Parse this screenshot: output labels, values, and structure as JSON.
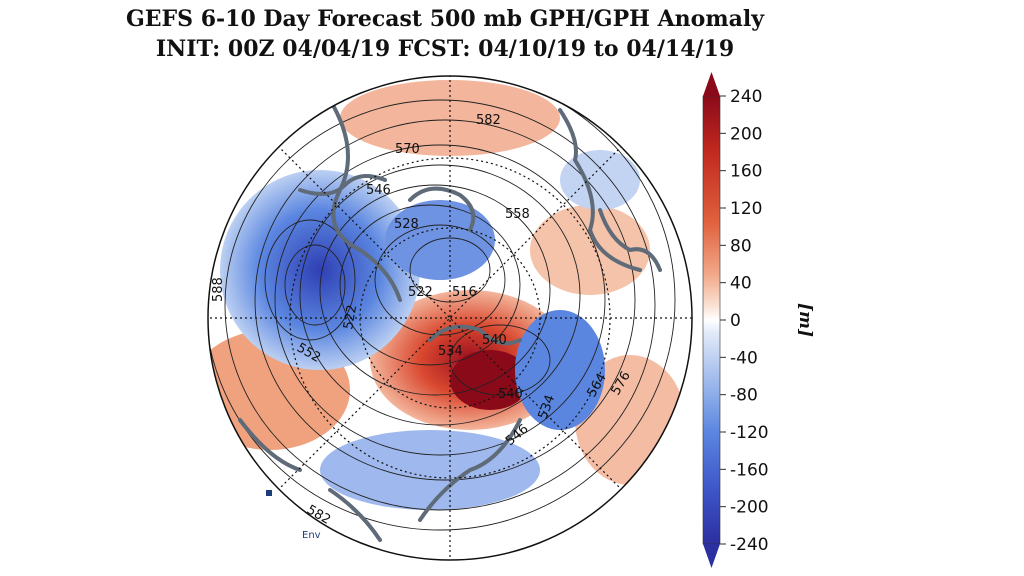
{
  "title": {
    "line1": "GEFS 6-10 Day Forecast 500 mb GPH/GPH Anomaly",
    "line2": "INIT: 00Z 04/04/19    FCST: 04/10/19 to 04/14/19"
  },
  "map": {
    "projection": "north-polar-stereographic",
    "contour_labels": [
      "582",
      "570",
      "546",
      "558",
      "528",
      "588",
      "522",
      "516",
      "522",
      "552",
      "534",
      "540",
      "540",
      "534",
      "546",
      "564",
      "576",
      "582"
    ],
    "watermark": "Env"
  },
  "colorbar": {
    "unit": "[m]",
    "ticks": [
      "240",
      "200",
      "160",
      "120",
      "80",
      "40",
      "0",
      "-40",
      "-80",
      "-120",
      "-160",
      "-200",
      "-240"
    ],
    "range": [
      -240,
      240
    ],
    "colors": {
      "positive_max": "#8b0a1a",
      "positive_mid": "#e0603d",
      "positive_low": "#f5cbb2",
      "neutral": "#ffffff",
      "negative_low": "#c8d8f2",
      "negative_mid": "#5b86e0",
      "negative_max": "#2c2fa0"
    }
  }
}
